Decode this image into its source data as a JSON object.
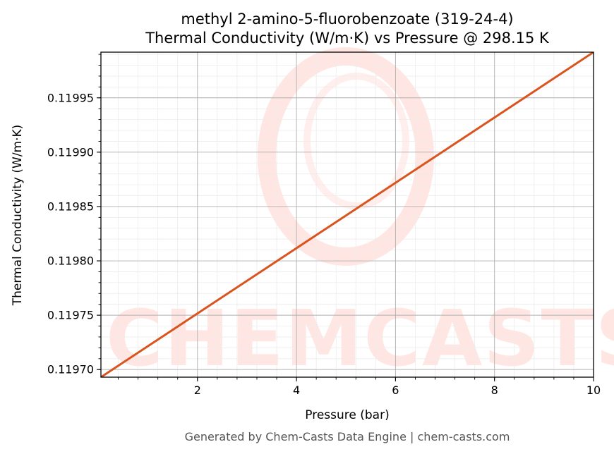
{
  "chart_data": {
    "type": "line",
    "title": "methyl 2-amino-5-fluorobenzoate (319-24-4)",
    "subtitle": "Thermal Conductivity (W/m·K) vs Pressure @ 298.15 K",
    "xlabel": "Pressure (bar)",
    "ylabel": "Thermal Conductivity (W/m·K)",
    "xlim": [
      0.05,
      10
    ],
    "ylim": [
      0.119693,
      0.119992
    ],
    "x_ticks": [
      2,
      4,
      6,
      8,
      10
    ],
    "x_tick_labels": [
      "2",
      "4",
      "6",
      "8",
      "10"
    ],
    "y_ticks": [
      0.1197,
      0.11975,
      0.1198,
      0.11985,
      0.1199,
      0.11995
    ],
    "y_tick_labels": [
      "0.11970",
      "0.11975",
      "0.11980",
      "0.11985",
      "0.11990",
      "0.11995"
    ],
    "grid": true,
    "series": [
      {
        "color": "#d9541e",
        "x": [
          0.05,
          10
        ],
        "y": [
          0.119693,
          0.119992
        ]
      }
    ]
  },
  "watermark": {
    "text": "CHEMCASTS",
    "color": "#ffe6e3"
  },
  "footer": {
    "text": "Generated by Chem-Casts Data Engine | chem-casts.com"
  }
}
